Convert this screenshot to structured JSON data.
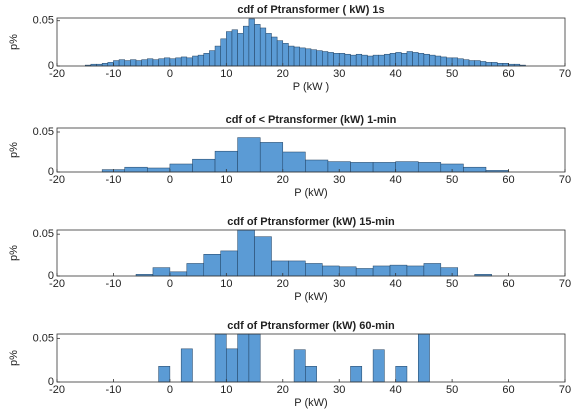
{
  "chart_data": [
    {
      "type": "histogram",
      "title": "cdf of Ptransformer ( kW)  1s",
      "xlabel": "P (kW )",
      "ylabel": "p%",
      "color": "#5b9bd5",
      "bins": [
        -15,
        -14,
        -13,
        -12,
        -11,
        -10,
        -9,
        -8,
        -7,
        -6,
        -5,
        -4,
        -3,
        -2,
        -1,
        0,
        1,
        2,
        3,
        4,
        5,
        6,
        7,
        8,
        9,
        10,
        11,
        12,
        13,
        14,
        15,
        16,
        17,
        18,
        19,
        20,
        21,
        22,
        23,
        24,
        25,
        26,
        27,
        28,
        29,
        30,
        31,
        32,
        33,
        34,
        35,
        36,
        37,
        38,
        39,
        40,
        41,
        42,
        43,
        44,
        45,
        46,
        47,
        48,
        49,
        50,
        51,
        52,
        53,
        54,
        55,
        56,
        57,
        58,
        59,
        60,
        61,
        62,
        63
      ],
      "values": [
        0.001,
        0.002,
        0.002,
        0.003,
        0.004,
        0.006,
        0.007,
        0.006,
        0.007,
        0.006,
        0.007,
        0.008,
        0.007,
        0.008,
        0.009,
        0.008,
        0.009,
        0.01,
        0.009,
        0.011,
        0.012,
        0.014,
        0.017,
        0.022,
        0.03,
        0.038,
        0.04,
        0.036,
        0.044,
        0.052,
        0.046,
        0.042,
        0.036,
        0.032,
        0.028,
        0.025,
        0.022,
        0.021,
        0.02,
        0.019,
        0.018,
        0.017,
        0.016,
        0.015,
        0.014,
        0.014,
        0.013,
        0.012,
        0.013,
        0.012,
        0.011,
        0.012,
        0.012,
        0.013,
        0.014,
        0.015,
        0.014,
        0.016,
        0.015,
        0.014,
        0.013,
        0.012,
        0.011,
        0.01,
        0.009,
        0.009,
        0.008,
        0.007,
        0.006,
        0.006,
        0.005,
        0.004,
        0.004,
        0.003,
        0.003,
        0.002,
        0.002,
        0.001
      ],
      "xlim": [
        -20,
        70
      ],
      "ylim": [
        0,
        0.053
      ],
      "xticks": [
        -20,
        -10,
        0,
        10,
        20,
        30,
        40,
        50,
        60,
        70
      ],
      "yticks": [
        0,
        0.05
      ]
    },
    {
      "type": "histogram",
      "title": "cdf of < Ptransformer (kW)   1-min",
      "xlabel": "P (kW)",
      "ylabel": "p%",
      "color": "#5b9bd5",
      "bins": [
        -12,
        -8,
        -4,
        0,
        4,
        8,
        12,
        16,
        20,
        24,
        28,
        32,
        36,
        40,
        44,
        48,
        52,
        56,
        60
      ],
      "values": [
        0.003,
        0.006,
        0.005,
        0.01,
        0.016,
        0.026,
        0.043,
        0.037,
        0.025,
        0.015,
        0.013,
        0.012,
        0.012,
        0.013,
        0.012,
        0.01,
        0.006,
        0.002
      ],
      "xlim": [
        -20,
        70
      ],
      "ylim": [
        0,
        0.055
      ],
      "xticks": [
        -20,
        -10,
        0,
        10,
        20,
        30,
        40,
        50,
        60,
        70
      ],
      "yticks": [
        0,
        0.05
      ]
    },
    {
      "type": "histogram",
      "title": "cdf of Ptransformer (kW)   15-min",
      "xlabel": "P (kW)",
      "ylabel": "p%",
      "color": "#5b9bd5",
      "bins": [
        -6,
        -3,
        0,
        3,
        6,
        9,
        12,
        15,
        18,
        21,
        24,
        27,
        30,
        33,
        36,
        39,
        42,
        45,
        48,
        51,
        54,
        57
      ],
      "values": [
        0.002,
        0.01,
        0.005,
        0.015,
        0.026,
        0.03,
        0.055,
        0.047,
        0.018,
        0.018,
        0.015,
        0.012,
        0.011,
        0.009,
        0.012,
        0.013,
        0.012,
        0.015,
        0.01,
        0,
        0.002
      ],
      "xlim": [
        -20,
        70
      ],
      "ylim": [
        0,
        0.055
      ],
      "xticks": [
        -20,
        -10,
        0,
        10,
        20,
        30,
        40,
        50,
        60,
        70
      ],
      "yticks": [
        0,
        0.05
      ]
    },
    {
      "type": "histogram",
      "title": "cdf of  Ptransformer (kW)   60-min",
      "xlabel": "P (kW)",
      "ylabel": "p%",
      "color": "#5b9bd5",
      "bins": [
        -2,
        0,
        2,
        4,
        6,
        8,
        10,
        12,
        14,
        16,
        18,
        20,
        22,
        24,
        26,
        28,
        30,
        32,
        34,
        36,
        38,
        40,
        42,
        44,
        46,
        48
      ],
      "values": [
        0.018,
        0,
        0.038,
        0,
        0,
        0.055,
        0.038,
        0.055,
        0.055,
        0,
        0,
        0,
        0.037,
        0.018,
        0,
        0,
        0,
        0.018,
        0,
        0.037,
        0,
        0.018,
        0,
        0.055,
        0
      ],
      "xlim": [
        -20,
        70
      ],
      "ylim": [
        0,
        0.055
      ],
      "xticks": [
        -20,
        -10,
        0,
        10,
        20,
        30,
        40,
        50,
        60,
        70
      ],
      "yticks": [
        0,
        0.05
      ]
    }
  ]
}
